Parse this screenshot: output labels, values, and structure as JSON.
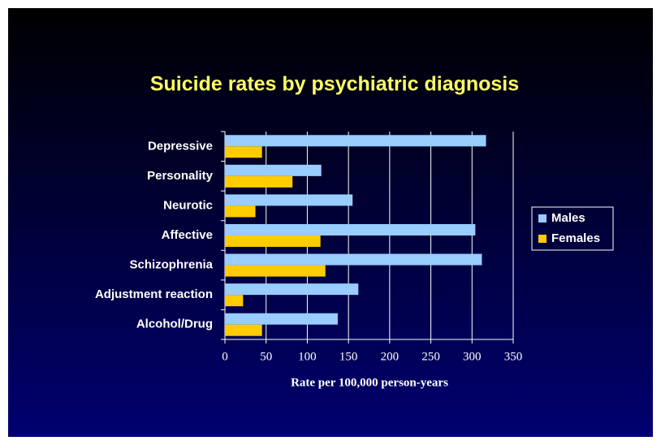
{
  "chart_data": {
    "type": "hbar",
    "title": "Suicide rates by psychiatric diagnosis",
    "x_label": "Rate per 100,000 person-years",
    "categories": [
      "Depressive",
      "Personality",
      "Neurotic",
      "Affective",
      "Schizophrenia",
      "Adjustment reaction",
      "Alcohol/Drug"
    ],
    "series": [
      {
        "name": "Males",
        "color": "#99ccff",
        "values": [
          317,
          117,
          155,
          304,
          312,
          162,
          137
        ]
      },
      {
        "name": "Females",
        "color": "#ffcc00",
        "values": [
          45,
          82,
          37,
          116,
          122,
          22,
          45
        ]
      }
    ],
    "xlim": [
      0,
      350
    ],
    "xticks": [
      0,
      50,
      100,
      150,
      200,
      250,
      300,
      350
    ],
    "grid": true,
    "legend": "right"
  }
}
